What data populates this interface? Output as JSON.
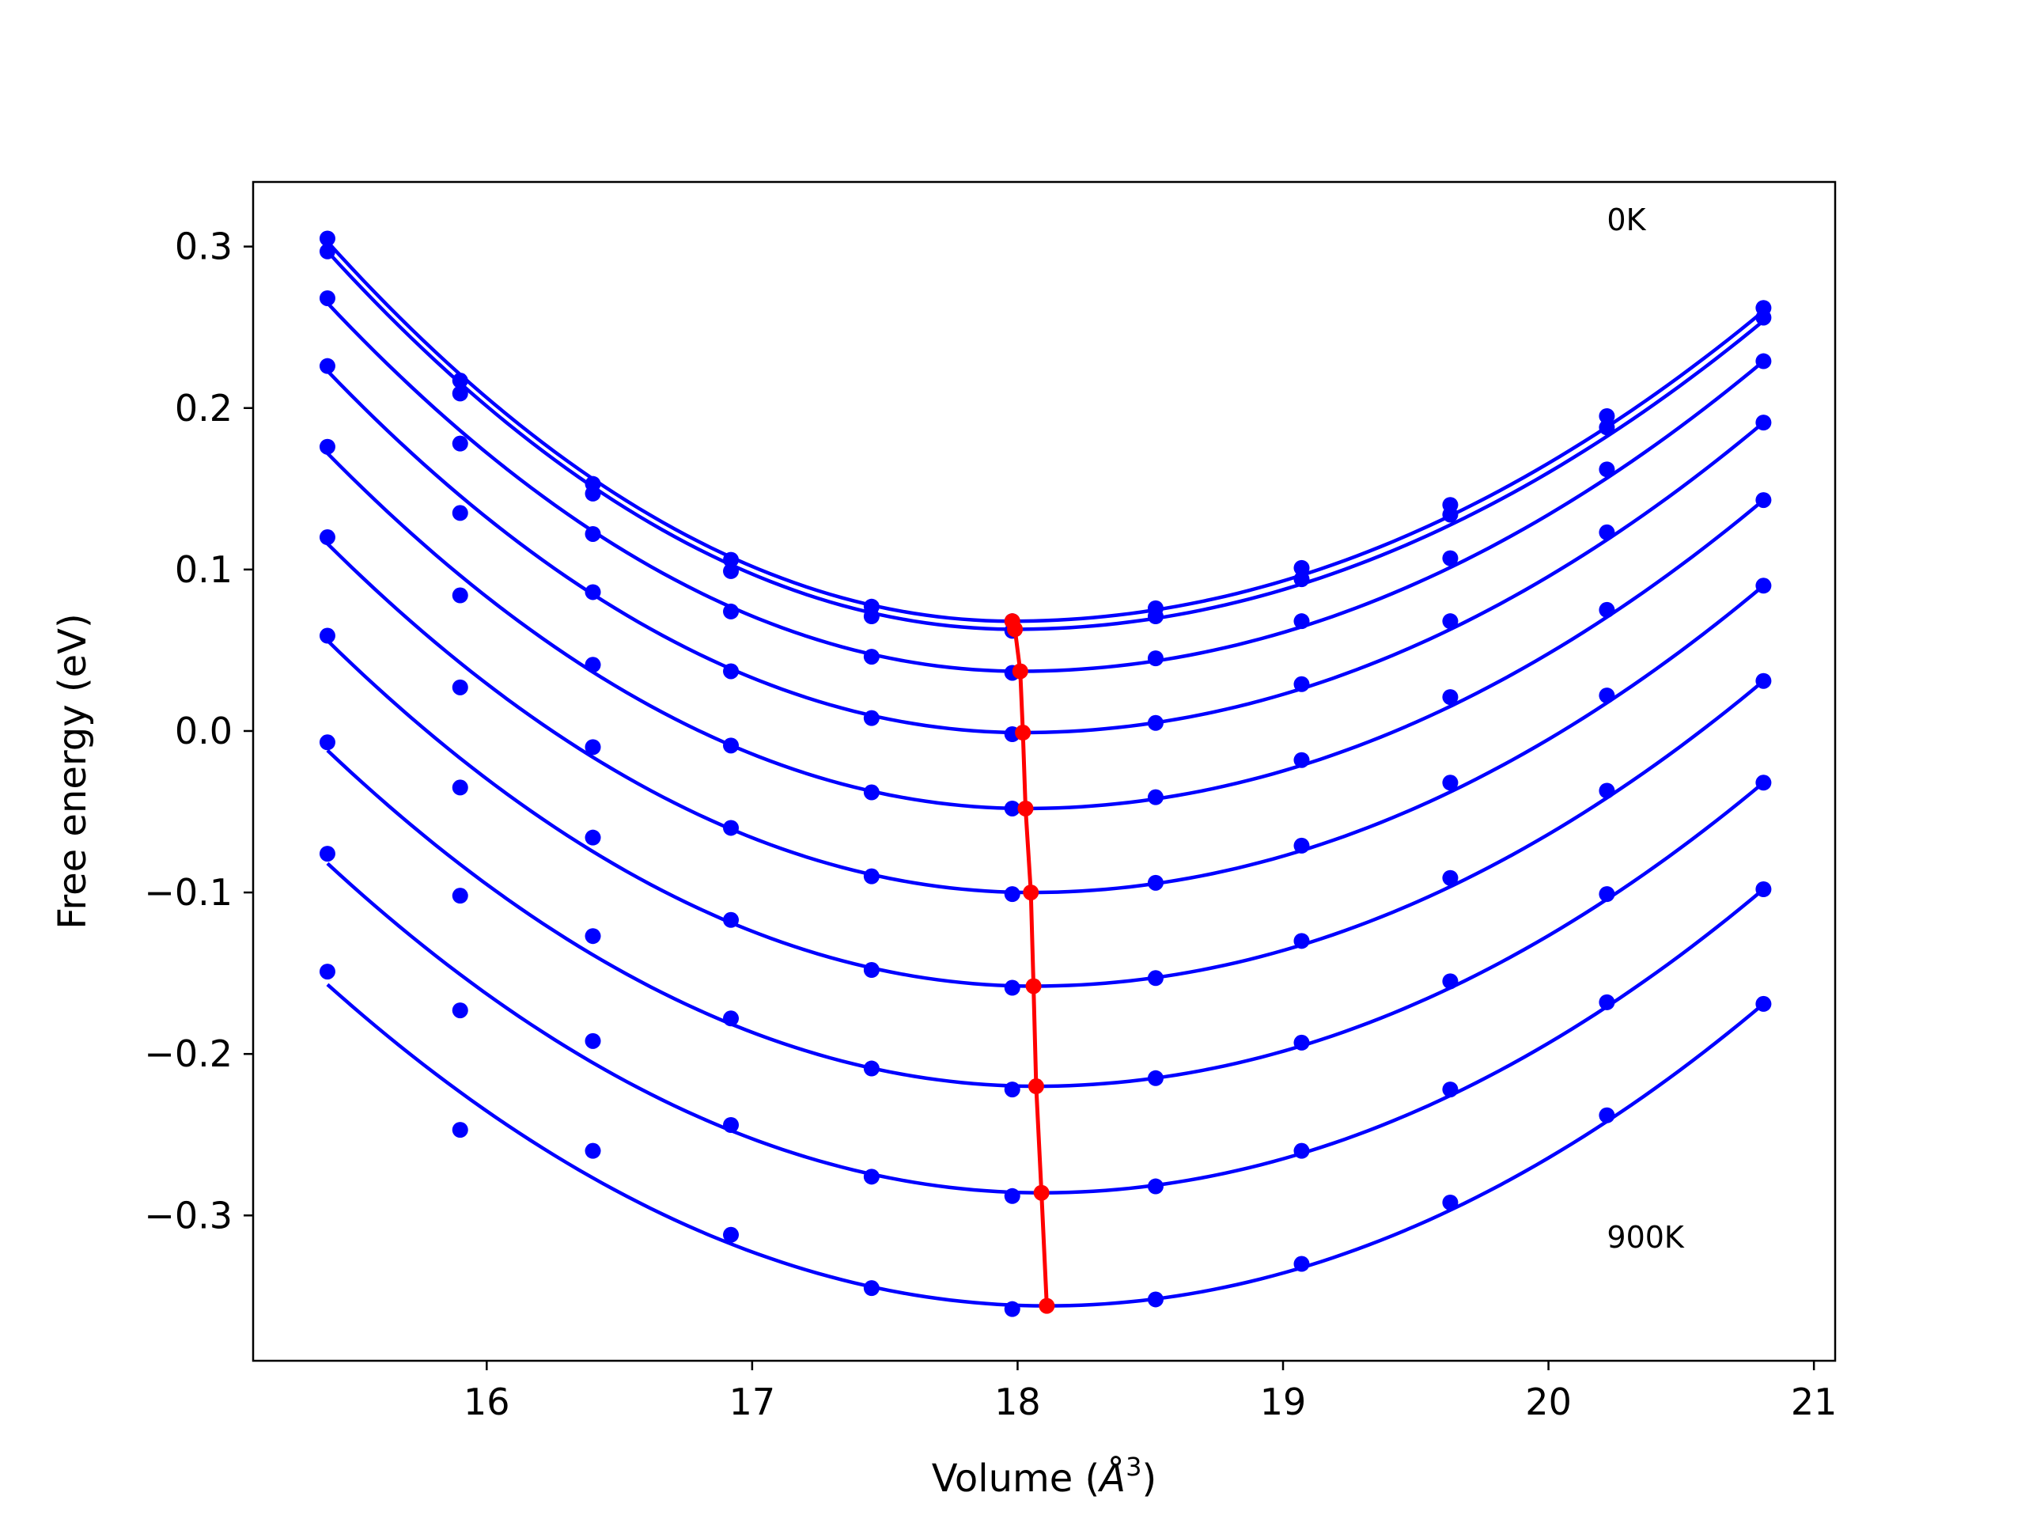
{
  "chart_data": {
    "type": "scatter",
    "xlabel": "Volume (",
    "xlabel_unit": "Å",
    "xlabel_exp": "3",
    "xlabel_close": ")",
    "ylabel": "Free energy (eV)",
    "xlim": [
      15.12,
      21.08
    ],
    "ylim": [
      -0.39,
      0.34
    ],
    "x_ticks": [
      16,
      17,
      18,
      19,
      20,
      21
    ],
    "x_tick_labels": [
      "16",
      "17",
      "18",
      "19",
      "20",
      "21"
    ],
    "y_ticks": [
      0.3,
      0.2,
      0.1,
      0.0,
      -0.1,
      -0.2,
      -0.3
    ],
    "y_tick_labels": [
      "0.3",
      "0.2",
      "0.1",
      "0.0",
      "−0.1",
      "−0.2",
      "−0.3"
    ],
    "grid": false,
    "colors": {
      "series": "#0000ff",
      "minima": "#ff0000"
    },
    "annotations": [
      {
        "text": "0K",
        "x": 20.22,
        "y": 0.31
      },
      {
        "text": "900K",
        "x": 20.22,
        "y": -0.32
      }
    ],
    "volumes": [
      15.4,
      15.9,
      16.4,
      16.92,
      17.45,
      17.98,
      18.52,
      19.07,
      19.63,
      20.22,
      20.81
    ],
    "fit_range": [
      15.4,
      20.81
    ],
    "series": [
      {
        "points": [
          0.305,
          0.217,
          0.153,
          0.106,
          0.077,
          0.068,
          0.076,
          0.101,
          0.14,
          0.195,
          0.262
        ],
        "fit_left": 0.303,
        "fit_right": 0.26,
        "min_x": 17.98,
        "min_y": 0.068
      },
      {
        "points": [
          0.297,
          0.209,
          0.147,
          0.099,
          0.071,
          0.062,
          0.071,
          0.094,
          0.134,
          0.188,
          0.256
        ],
        "fit_left": 0.297,
        "fit_right": 0.254,
        "min_x": 17.99,
        "min_y": 0.063
      },
      {
        "points": [
          0.268,
          0.178,
          0.122,
          0.074,
          0.046,
          0.036,
          0.045,
          0.068,
          0.107,
          0.162,
          0.229
        ],
        "fit_left": 0.265,
        "fit_right": 0.229,
        "min_x": 18.01,
        "min_y": 0.037
      },
      {
        "points": [
          0.226,
          0.135,
          0.086,
          0.037,
          0.008,
          -0.002,
          0.005,
          0.029,
          0.068,
          0.123,
          0.191
        ],
        "fit_left": 0.223,
        "fit_right": 0.191,
        "min_x": 18.02,
        "min_y": -0.001
      },
      {
        "points": [
          0.176,
          0.084,
          0.041,
          -0.009,
          -0.038,
          -0.048,
          -0.041,
          -0.018,
          0.021,
          0.075,
          0.143
        ],
        "fit_left": 0.172,
        "fit_right": 0.143,
        "min_x": 18.03,
        "min_y": -0.048
      },
      {
        "points": [
          0.12,
          0.027,
          -0.01,
          -0.06,
          -0.09,
          -0.101,
          -0.094,
          -0.071,
          -0.032,
          0.022,
          0.09
        ],
        "fit_left": 0.116,
        "fit_right": 0.09,
        "min_x": 18.05,
        "min_y": -0.1
      },
      {
        "points": [
          0.059,
          -0.035,
          -0.066,
          -0.117,
          -0.148,
          -0.159,
          -0.153,
          -0.13,
          -0.091,
          -0.037,
          0.031
        ],
        "fit_left": 0.056,
        "fit_right": 0.031,
        "min_x": 18.06,
        "min_y": -0.158
      },
      {
        "points": [
          -0.007,
          -0.102,
          -0.127,
          -0.178,
          -0.209,
          -0.222,
          -0.215,
          -0.193,
          -0.155,
          -0.101,
          -0.032
        ],
        "fit_left": -0.012,
        "fit_right": -0.032,
        "min_x": 18.07,
        "min_y": -0.22
      },
      {
        "points": [
          -0.076,
          -0.173,
          -0.192,
          -0.244,
          -0.276,
          -0.288,
          -0.282,
          -0.26,
          -0.222,
          -0.168,
          -0.098
        ],
        "fit_left": -0.082,
        "fit_right": -0.098,
        "min_x": 18.09,
        "min_y": -0.286
      },
      {
        "points": [
          -0.149,
          -0.247,
          -0.26,
          -0.312,
          -0.345,
          -0.358,
          -0.352,
          -0.33,
          -0.292,
          -0.238,
          -0.169
        ],
        "fit_left": -0.157,
        "fit_right": -0.169,
        "min_x": 18.11,
        "min_y": -0.356
      }
    ]
  }
}
